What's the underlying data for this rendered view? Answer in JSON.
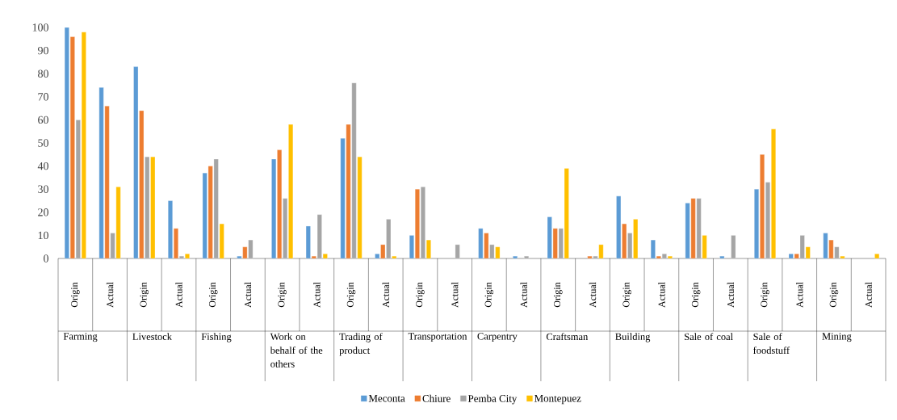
{
  "chart_data": {
    "type": "bar",
    "categories": [
      "Origin",
      "Actual",
      "Origin",
      "Actual",
      "Origin",
      "Actual",
      "Origin",
      "Actual",
      "Origin",
      "Actual",
      "Origin",
      "Actual",
      "Origin",
      "Actual",
      "Origin",
      "Actual",
      "Origin",
      "Actual",
      "Origin",
      "Actual",
      "Origin",
      "Actual",
      "Origin",
      "Actual"
    ],
    "series": [
      {
        "name": "Meconta",
        "color": "#5b9bd5",
        "values": [
          100,
          74,
          83,
          25,
          37,
          1,
          43,
          14,
          52,
          2,
          10,
          null,
          13,
          1,
          18,
          null,
          27,
          8,
          24,
          1,
          30,
          2,
          11,
          null
        ]
      },
      {
        "name": "Chiure",
        "color": "#ed7d31",
        "values": [
          96,
          66,
          64,
          13,
          40,
          5,
          47,
          1,
          58,
          6,
          30,
          null,
          11,
          null,
          13,
          1,
          15,
          1,
          26,
          null,
          45,
          2,
          8,
          null
        ]
      },
      {
        "name": "Pemba City",
        "color": "#a5a5a5",
        "values": [
          60,
          11,
          44,
          1,
          43,
          8,
          26,
          19,
          76,
          17,
          31,
          6,
          6,
          1,
          13,
          1,
          11,
          2,
          26,
          10,
          33,
          10,
          5,
          null
        ]
      },
      {
        "name": "Montepuez",
        "color": "#ffc000",
        "values": [
          98,
          31,
          44,
          2,
          15,
          null,
          58,
          2,
          44,
          1,
          8,
          null,
          5,
          null,
          39,
          6,
          17,
          1,
          10,
          null,
          56,
          5,
          1,
          2
        ]
      }
    ],
    "annotations": [
      "Farming",
      "Livestock",
      "Fishing",
      "Work on behalf of the others",
      "Trading of product",
      "Transportation",
      "Carpentry",
      "Craftsman",
      "Building",
      "Sale of coal",
      "Sale of foodstuff",
      "Mining"
    ],
    "ylim": [
      0,
      100
    ],
    "yticks": [
      0,
      10,
      20,
      30,
      40,
      50,
      60,
      70,
      80,
      90,
      100
    ],
    "legend": "bottom"
  }
}
